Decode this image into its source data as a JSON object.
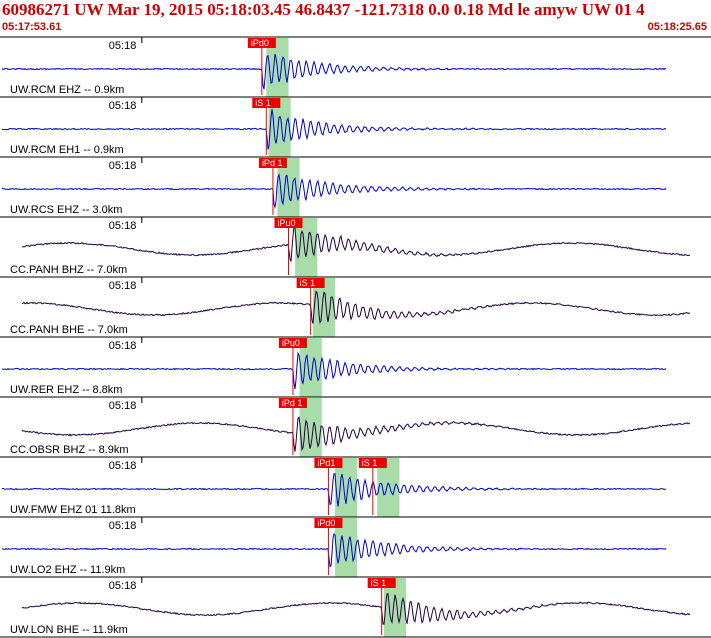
{
  "header": {
    "title": "60986271 UW Mar 19, 2015 05:18:03.45   46.8437 -121.7318  0.0 0.18 Md le amyw UW 01   4",
    "start_time": "05:17:53.61",
    "end_time": "05:18:25.65"
  },
  "colors": {
    "header_text": "#cc0000",
    "trace_blue": "#0000cc",
    "trace_dark": "#200040",
    "pick_bg": "#ee0000",
    "window": "#a8dca8"
  },
  "channels": [
    {
      "label": "UW.RCM EHZ -- 0.9km",
      "time": "05:18",
      "trace_color": "blue",
      "picks": [
        {
          "text": "iPd0",
          "sec": 11.8,
          "win": [
            12.0,
            13.0
          ]
        }
      ]
    },
    {
      "label": "UW.RCM EH1 -- 0.9km",
      "time": "05:18",
      "trace_color": "blue",
      "picks": [
        {
          "text": "iS 1",
          "sec": 12.0,
          "win": [
            12.1,
            13.1
          ]
        }
      ]
    },
    {
      "label": "UW.RCS EHZ -- 3.0km",
      "time": "05:18",
      "trace_color": "blue",
      "picks": [
        {
          "text": "iPd 1",
          "sec": 12.3,
          "win": [
            12.5,
            13.5
          ]
        }
      ]
    },
    {
      "label": "CC.PANH BHZ -- 7.0km",
      "time": "05:18",
      "trace_color": "dark",
      "picks": [
        {
          "text": "iPu0",
          "sec": 13.0,
          "win": [
            13.3,
            14.3
          ]
        }
      ]
    },
    {
      "label": "CC.PANH BHE -- 7.0km",
      "time": "05:18",
      "trace_color": "dark",
      "picks": [
        {
          "text": "iS 1",
          "sec": 14.0,
          "win": [
            14.1,
            15.1
          ]
        }
      ]
    },
    {
      "label": "UW.RER EHZ -- 8.8km",
      "time": "05:18",
      "trace_color": "blue",
      "picks": [
        {
          "text": "iPu0",
          "sec": 13.2,
          "win": [
            13.5,
            14.5
          ]
        }
      ]
    },
    {
      "label": "CC.OBSR BHZ -- 8.9km",
      "time": "05:18",
      "trace_color": "dark",
      "picks": [
        {
          "text": "iPd 1",
          "sec": 13.2,
          "win": [
            13.5,
            14.5
          ]
        }
      ]
    },
    {
      "label": "UW.FMW EHZ 01 11.8km",
      "time": "05:18",
      "trace_color": "blue",
      "picks": [
        {
          "text": "iPd1",
          "sec": 14.8,
          "win": [
            15.1,
            16.1
          ]
        },
        {
          "text": "iS 1",
          "sec": 16.8,
          "win": [
            17.0,
            18.0
          ]
        }
      ]
    },
    {
      "label": "UW.LO2 EHZ -- 11.9km",
      "time": "05:18",
      "trace_color": "blue",
      "picks": [
        {
          "text": "iPd0",
          "sec": 14.8,
          "win": [
            15.1,
            16.1
          ]
        }
      ]
    },
    {
      "label": "UW.LON BHE -- 11.9km",
      "time": "05:18",
      "trace_color": "dark",
      "picks": [
        {
          "text": "iS 1",
          "sec": 17.2,
          "win": [
            17.3,
            18.3
          ]
        }
      ]
    }
  ]
}
